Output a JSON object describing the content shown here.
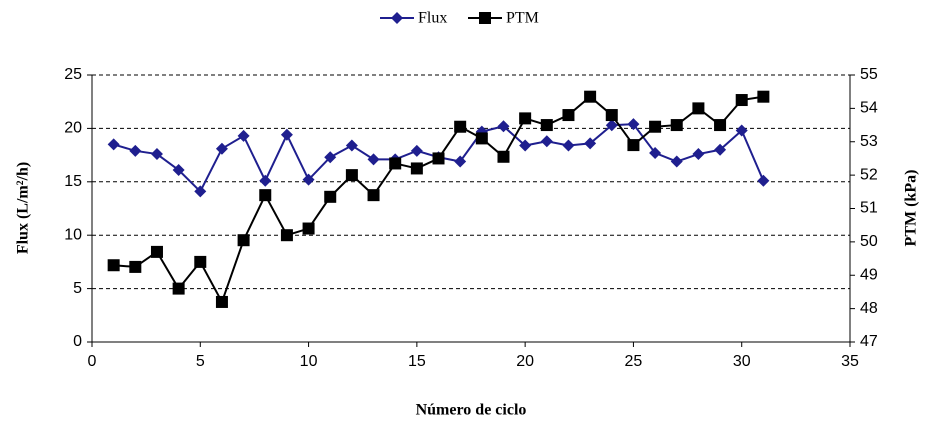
{
  "chart_data": {
    "type": "line",
    "xlabel": "Número de ciclo",
    "ylabel": "Flux (L/m²/h)",
    "y2label": "PTM (kPa)",
    "x": [
      1,
      2,
      3,
      4,
      5,
      6,
      7,
      8,
      9,
      10,
      11,
      12,
      13,
      14,
      15,
      16,
      17,
      18,
      19,
      20,
      21,
      22,
      23,
      24,
      25,
      26,
      27,
      28,
      29,
      30,
      31
    ],
    "series": [
      {
        "name": "Flux",
        "color": "#1f1f8f",
        "marker": "diamond",
        "values": [
          18.5,
          17.9,
          17.6,
          16.1,
          14.1,
          18.1,
          19.3,
          15.1,
          19.4,
          15.2,
          17.3,
          18.4,
          17.1,
          17.1,
          17.9,
          17.3,
          16.9,
          19.7,
          20.2,
          18.4,
          18.8,
          18.4,
          18.6,
          20.3,
          20.4,
          17.7,
          16.9,
          17.6,
          18.0,
          19.8,
          15.1
        ]
      },
      {
        "name": "PTM",
        "color": "#000000",
        "marker": "square",
        "axis": "y2",
        "values": [
          49.3,
          49.25,
          49.7,
          48.6,
          49.4,
          48.2,
          50.05,
          51.4,
          50.2,
          50.4,
          51.35,
          52.0,
          51.4,
          52.35,
          52.2,
          52.5,
          53.45,
          53.1,
          52.55,
          53.7,
          53.5,
          53.8,
          54.35,
          53.8,
          52.9,
          53.45,
          53.5,
          54.0,
          53.5,
          54.25,
          54.35
        ]
      }
    ],
    "xlim": [
      0,
      35
    ],
    "xticks": [
      0,
      5,
      10,
      15,
      20,
      25,
      30,
      35
    ],
    "ylim": [
      0,
      25
    ],
    "yticks": [
      0,
      5,
      10,
      15,
      20,
      25
    ],
    "y2lim": [
      47,
      55
    ],
    "y2ticks": [
      47,
      48,
      49,
      50,
      51,
      52,
      53,
      54,
      55
    ],
    "grid": true,
    "legend": "top"
  }
}
